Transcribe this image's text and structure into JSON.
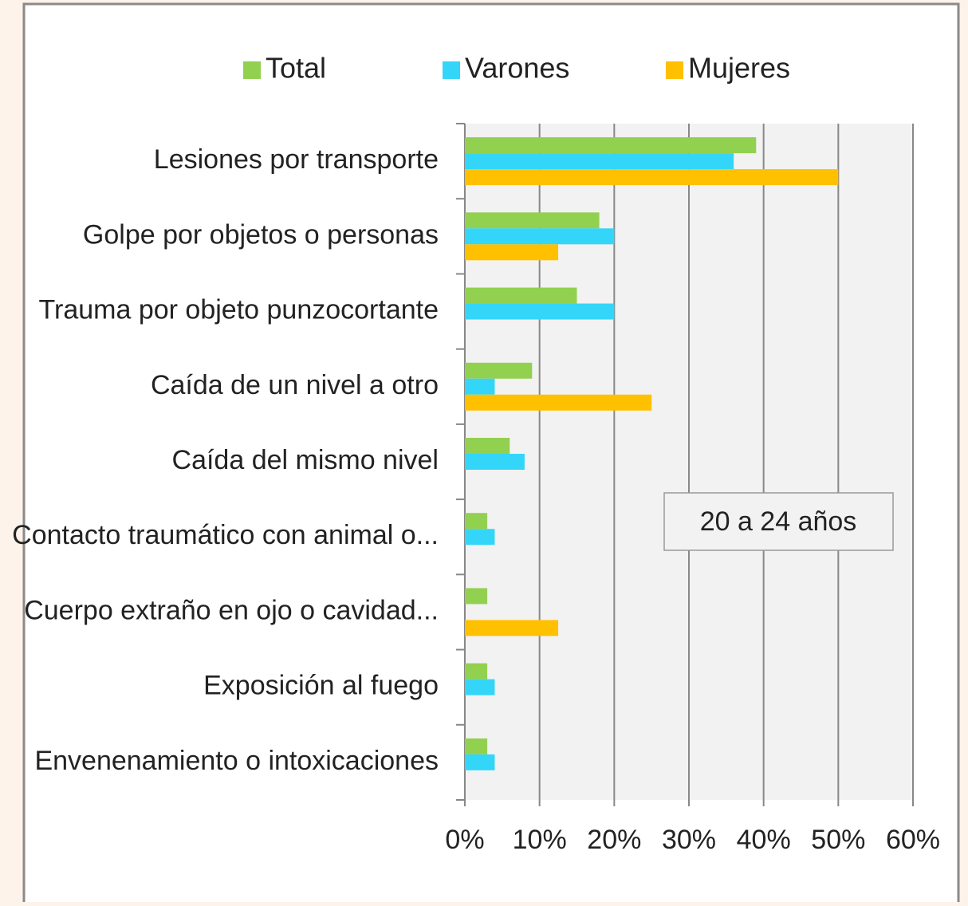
{
  "chart_data": {
    "type": "barh",
    "categories": [
      "Lesiones por transporte",
      "Golpe por objetos o personas",
      "Trauma por objeto punzocortante",
      "Caída de un nivel a otro",
      "Caída del mismo nivel",
      "Contacto traumático con animal o...",
      "Cuerpo extraño en ojo o cavidad...",
      "Exposición al fuego",
      "Envenenamiento o intoxicaciones"
    ],
    "series": [
      {
        "name": "Total",
        "color": "#92d050",
        "values": [
          39,
          18,
          15,
          9,
          6,
          3,
          3,
          3,
          3
        ]
      },
      {
        "name": "Varones",
        "color": "#33d6f8",
        "values": [
          36,
          20,
          20,
          4,
          8,
          4,
          0,
          4,
          4
        ]
      },
      {
        "name": "Mujeres",
        "color": "#ffc000",
        "values": [
          50,
          12.5,
          0,
          25,
          0,
          0,
          12.5,
          0,
          0
        ]
      }
    ],
    "xlim": [
      0,
      60
    ],
    "xticks": [
      {
        "value": 0,
        "label": "0%"
      },
      {
        "value": 10,
        "label": "10%"
      },
      {
        "value": 20,
        "label": "20%"
      },
      {
        "value": 30,
        "label": "30%"
      },
      {
        "value": 40,
        "label": "40%"
      },
      {
        "value": 50,
        "label": "50%"
      },
      {
        "value": 60,
        "label": "60%"
      }
    ],
    "grid": true,
    "legend": "top",
    "annotation": "20 a 24 años"
  }
}
